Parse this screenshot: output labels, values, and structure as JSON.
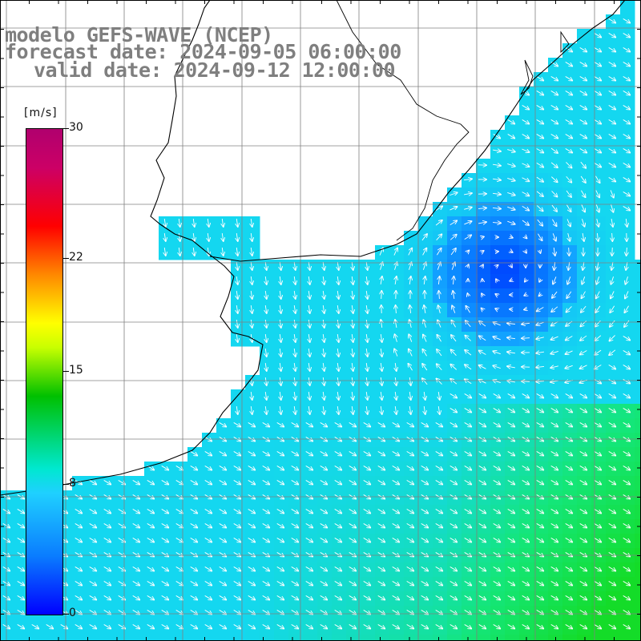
{
  "title": {
    "line1": "modelo GEFS-WAVE (NCEP)",
    "line2": "forecast date: 2024-09-05 06:00:00",
    "line3": "valid date: 2024-09-12 12:00:00"
  },
  "colorbar": {
    "unit": "[m/s]",
    "ticks": [
      {
        "label": "30",
        "value": 30
      },
      {
        "label": "22",
        "value": 22
      },
      {
        "label": "15",
        "value": 15
      },
      {
        "label": "8",
        "value": 8
      },
      {
        "label": "0",
        "value": 0
      }
    ],
    "min": 0,
    "max": 30
  },
  "map": {
    "variable": "wind speed and direction",
    "units": "m/s",
    "ocean_color_low": "#1296ff",
    "ocean_color_high": "#10e060",
    "land_color": "#ffffff",
    "grid_color": "#7f7f7f"
  }
}
